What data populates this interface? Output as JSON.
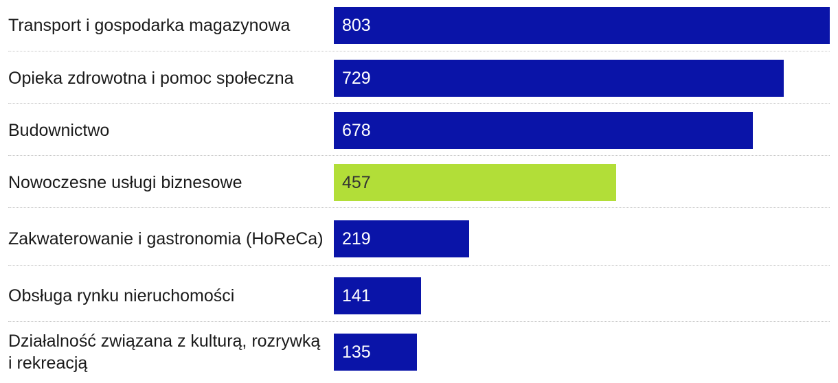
{
  "colors": {
    "bar_default": "#0a14a8",
    "bar_highlight": "#b2de38",
    "value_text_default": "#ffffff",
    "value_text_highlight": "#333333",
    "label_text": "#1a1a1a",
    "divider": "#c4c4c4"
  },
  "chart_data": {
    "type": "bar",
    "orientation": "horizontal",
    "title": "",
    "xlabel": "",
    "ylabel": "",
    "grid": false,
    "xlim": [
      0,
      803
    ],
    "categories": [
      "Transport i gospodarka magazynowa",
      "Opieka zdrowotna i pomoc społeczna",
      "Budownictwo",
      "Nowoczesne usługi biznesowe",
      "Zakwaterowanie i gastronomia (HoReCa)",
      "Obsługa rynku nieruchomości",
      "Działalność związana z kulturą, rozrywką i rekreacją"
    ],
    "values": [
      803,
      729,
      678,
      457,
      219,
      141,
      135
    ],
    "value_labels": [
      "803",
      "729",
      "678",
      "457",
      "219",
      "141",
      "135"
    ],
    "highlighted_category": "Nowoczesne usługi biznesowe"
  }
}
